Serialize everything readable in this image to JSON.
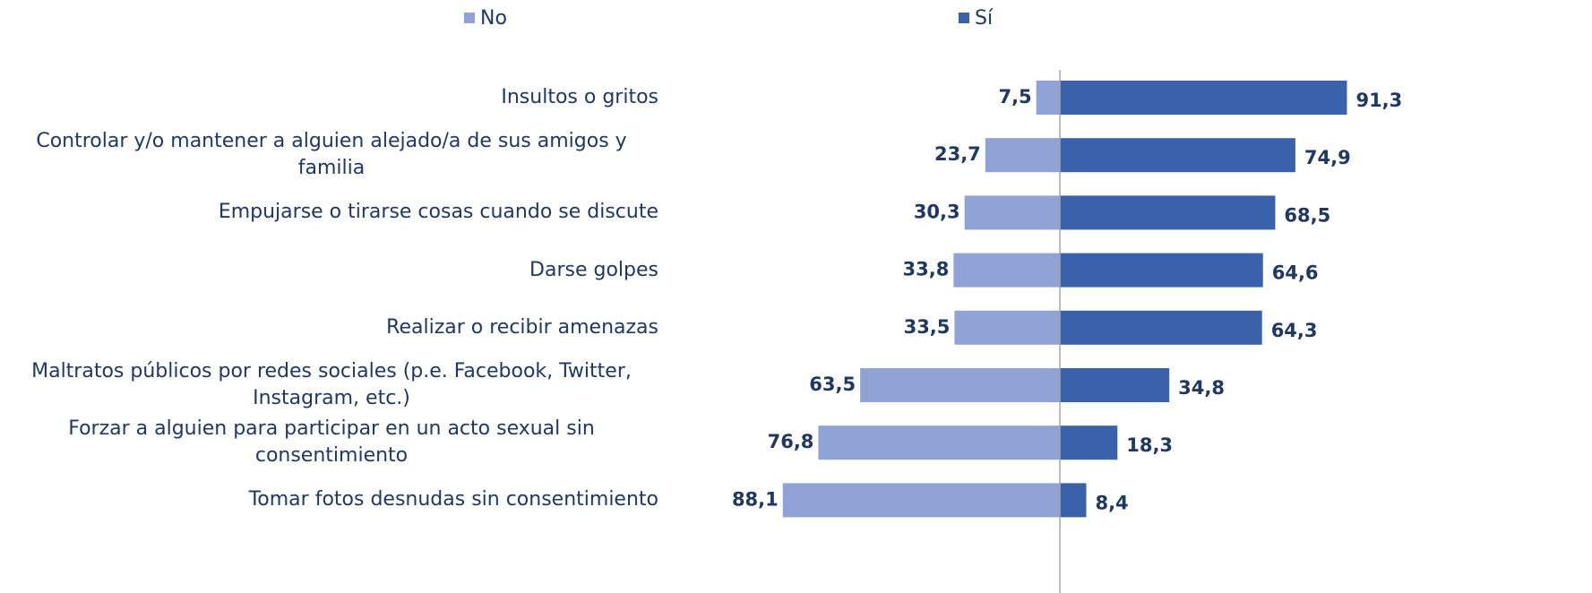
{
  "chart_data": {
    "type": "diverging_bar",
    "categories": [
      "Insultos o gritos",
      "Controlar y/o mantener a alguien alejado/a de sus amigos y familia",
      "Empujarse o tirarse cosas cuando se discute",
      "Darse golpes",
      "Realizar o recibir amenazas",
      "Maltratos públicos por redes sociales (p.e. Facebook, Twitter, Instagram, etc.)",
      "Forzar a alguien para participar en un acto sexual sin consentimiento",
      "Tomar fotos desnudas sin consentimiento"
    ],
    "series": [
      {
        "name": "No",
        "color": "#8fa3d6",
        "side": "left",
        "values": [
          7.5,
          23.7,
          30.3,
          33.8,
          33.5,
          63.5,
          76.8,
          88.1
        ],
        "value_labels": [
          "7,5",
          "23,7",
          "30,3",
          "33,8",
          "33,5",
          "63,5",
          "76,8",
          "88,1"
        ]
      },
      {
        "name": "Sí",
        "color": "#3a62ab",
        "side": "right",
        "values": [
          91.3,
          74.9,
          68.5,
          64.6,
          64.3,
          34.8,
          18.3,
          8.4
        ],
        "value_labels": [
          "91,3",
          "74,9",
          "68,5",
          "64,6",
          "64,3",
          "34,8",
          "18,3",
          "8,4"
        ]
      }
    ],
    "legend": "top"
  }
}
